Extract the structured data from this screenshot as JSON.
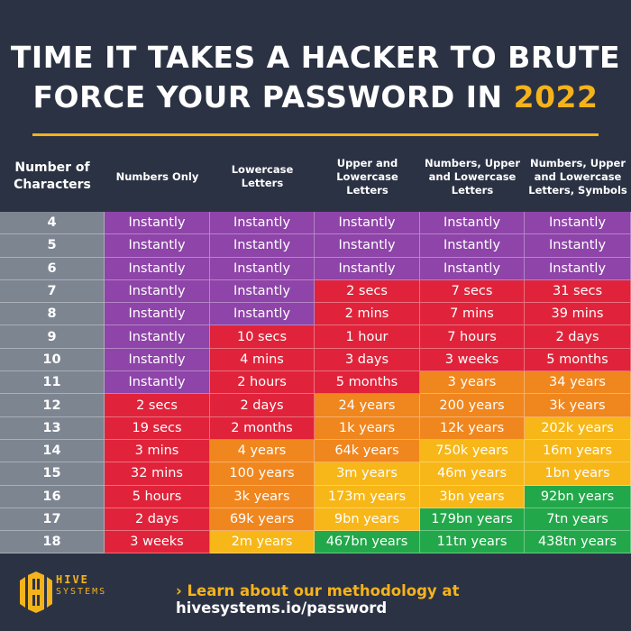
{
  "title": {
    "line1": "TIME IT TAKES A HACKER TO BRUTE",
    "line2": "FORCE YOUR PASSWORD IN ",
    "year": "2022"
  },
  "colors": {
    "background": "#2b3243",
    "accent": "#f5b31b",
    "P": "#8e44a8",
    "R": "#e0233a",
    "O": "#f0861e",
    "Y": "#f7b719",
    "G": "#22a84a",
    "rowhead": "#7d8591"
  },
  "chart_data": {
    "type": "table",
    "title": "TIME IT TAKES A HACKER TO BRUTE FORCE YOUR PASSWORD IN 2022",
    "columns": [
      "Number of Characters",
      "Numbers Only",
      "Lowercase Letters",
      "Upper and Lowercase Letters",
      "Numbers, Upper and Lowercase Letters",
      "Numbers, Upper and Lowercase Letters, Symbols"
    ],
    "rows": [
      {
        "n": "4",
        "cells": [
          "Instantly",
          "Instantly",
          "Instantly",
          "Instantly",
          "Instantly"
        ],
        "colors": [
          "P",
          "P",
          "P",
          "P",
          "P"
        ]
      },
      {
        "n": "5",
        "cells": [
          "Instantly",
          "Instantly",
          "Instantly",
          "Instantly",
          "Instantly"
        ],
        "colors": [
          "P",
          "P",
          "P",
          "P",
          "P"
        ]
      },
      {
        "n": "6",
        "cells": [
          "Instantly",
          "Instantly",
          "Instantly",
          "Instantly",
          "Instantly"
        ],
        "colors": [
          "P",
          "P",
          "P",
          "P",
          "P"
        ]
      },
      {
        "n": "7",
        "cells": [
          "Instantly",
          "Instantly",
          "2 secs",
          "7 secs",
          "31 secs"
        ],
        "colors": [
          "P",
          "P",
          "R",
          "R",
          "R"
        ]
      },
      {
        "n": "8",
        "cells": [
          "Instantly",
          "Instantly",
          "2 mins",
          "7 mins",
          "39 mins"
        ],
        "colors": [
          "P",
          "P",
          "R",
          "R",
          "R"
        ]
      },
      {
        "n": "9",
        "cells": [
          "Instantly",
          "10 secs",
          "1 hour",
          "7 hours",
          "2 days"
        ],
        "colors": [
          "P",
          "R",
          "R",
          "R",
          "R"
        ]
      },
      {
        "n": "10",
        "cells": [
          "Instantly",
          "4 mins",
          "3 days",
          "3 weeks",
          "5 months"
        ],
        "colors": [
          "P",
          "R",
          "R",
          "R",
          "R"
        ]
      },
      {
        "n": "11",
        "cells": [
          "Instantly",
          "2 hours",
          "5 months",
          "3 years",
          "34 years"
        ],
        "colors": [
          "P",
          "R",
          "R",
          "O",
          "O"
        ]
      },
      {
        "n": "12",
        "cells": [
          "2 secs",
          "2 days",
          "24 years",
          "200 years",
          "3k years"
        ],
        "colors": [
          "R",
          "R",
          "O",
          "O",
          "O"
        ]
      },
      {
        "n": "13",
        "cells": [
          "19 secs",
          "2 months",
          "1k years",
          "12k years",
          "202k years"
        ],
        "colors": [
          "R",
          "R",
          "O",
          "O",
          "Y"
        ]
      },
      {
        "n": "14",
        "cells": [
          "3 mins",
          "4 years",
          "64k years",
          "750k years",
          "16m years"
        ],
        "colors": [
          "R",
          "O",
          "O",
          "Y",
          "Y"
        ]
      },
      {
        "n": "15",
        "cells": [
          "32 mins",
          "100 years",
          "3m years",
          "46m years",
          "1bn years"
        ],
        "colors": [
          "R",
          "O",
          "Y",
          "Y",
          "Y"
        ]
      },
      {
        "n": "16",
        "cells": [
          "5 hours",
          "3k years",
          "173m years",
          "3bn years",
          "92bn years"
        ],
        "colors": [
          "R",
          "O",
          "Y",
          "Y",
          "G"
        ]
      },
      {
        "n": "17",
        "cells": [
          "2 days",
          "69k years",
          "9bn years",
          "179bn years",
          "7tn years"
        ],
        "colors": [
          "R",
          "O",
          "Y",
          "G",
          "G"
        ]
      },
      {
        "n": "18",
        "cells": [
          "3 weeks",
          "2m years",
          "467bn years",
          "11tn years",
          "438tn years"
        ],
        "colors": [
          "R",
          "Y",
          "G",
          "G",
          "G"
        ]
      }
    ]
  },
  "footer": {
    "logo_line1": "HIVE",
    "logo_line2": "SYSTEMS",
    "link_prefix": "› Learn about our methodology at ",
    "link_url": "hivesystems.io/password"
  }
}
